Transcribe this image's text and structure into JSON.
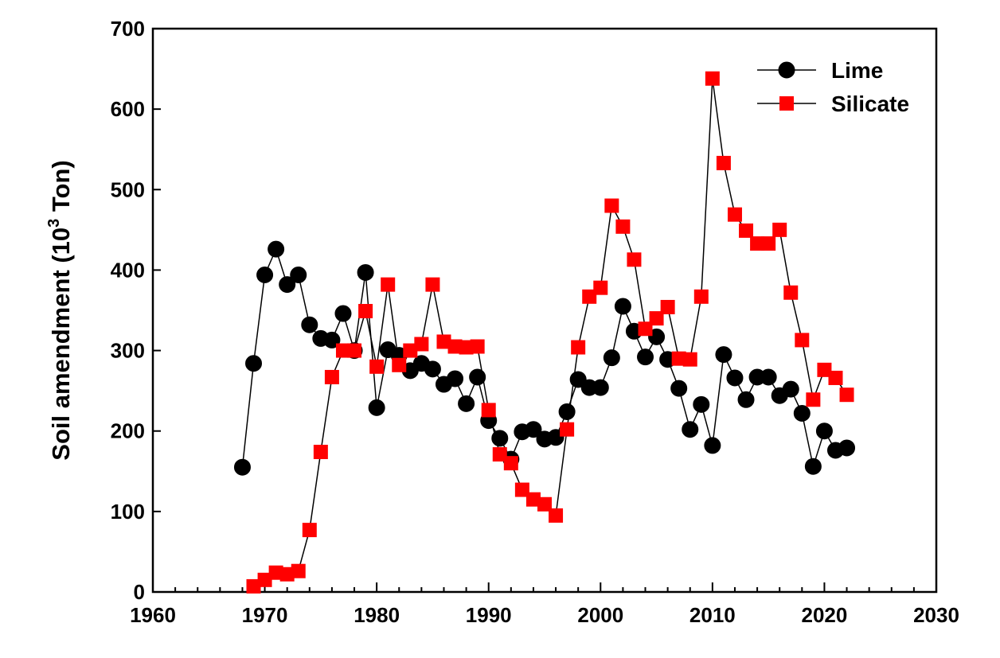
{
  "chart_data": {
    "type": "line",
    "title": "",
    "xlabel": "",
    "ylabel": "Soil amendment (10",
    "ylabel_superscript": "3",
    "ylabel_suffix": " Ton)",
    "xlim": [
      1960,
      2030
    ],
    "ylim": [
      0,
      700
    ],
    "xticks": [
      "1960",
      "1970",
      "1980",
      "1990",
      "2000",
      "2010",
      "2020",
      "2030"
    ],
    "yticks": [
      "0",
      "100",
      "200",
      "300",
      "400",
      "500",
      "600",
      "700"
    ],
    "grid": false,
    "legend_position": "top-right",
    "series": [
      {
        "name": "Lime",
        "marker": "circle",
        "color": "#000000",
        "x": [
          1968,
          1969,
          1970,
          1971,
          1972,
          1973,
          1974,
          1975,
          1976,
          1977,
          1978,
          1979,
          1980,
          1981,
          1982,
          1983,
          1984,
          1985,
          1986,
          1987,
          1988,
          1989,
          1990,
          1991,
          1992,
          1993,
          1994,
          1995,
          1996,
          1997,
          1998,
          1999,
          2000,
          2001,
          2002,
          2003,
          2004,
          2005,
          2006,
          2007,
          2008,
          2009,
          2010,
          2011,
          2012,
          2013,
          2014,
          2015,
          2016,
          2017,
          2018,
          2019,
          2020,
          2021,
          2022
        ],
        "values": [
          155,
          284,
          394,
          426,
          382,
          394,
          332,
          315,
          313,
          346,
          300,
          397,
          229,
          301,
          294,
          275,
          284,
          277,
          258,
          265,
          234,
          267,
          213,
          191,
          165,
          199,
          202,
          190,
          192,
          224,
          264,
          254,
          254,
          291,
          355,
          324,
          292,
          317,
          289,
          253,
          202,
          233,
          182,
          295,
          266,
          239,
          267,
          267,
          244,
          252,
          222,
          156,
          200,
          176,
          179
        ]
      },
      {
        "name": "Silicate",
        "marker": "square",
        "color": "#ff0000",
        "x": [
          1969,
          1970,
          1971,
          1972,
          1973,
          1974,
          1975,
          1976,
          1977,
          1978,
          1979,
          1980,
          1981,
          1982,
          1983,
          1984,
          1985,
          1986,
          1987,
          1988,
          1989,
          1990,
          1991,
          1992,
          1993,
          1994,
          1995,
          1996,
          1997,
          1998,
          1999,
          2000,
          2001,
          2002,
          2003,
          2004,
          2005,
          2006,
          2007,
          2008,
          2009,
          2010,
          2011,
          2012,
          2013,
          2014,
          2015,
          2016,
          2017,
          2018,
          2019,
          2020,
          2021,
          2022
        ],
        "values": [
          7,
          15,
          24,
          22,
          26,
          77,
          174,
          267,
          300,
          300,
          349,
          280,
          382,
          282,
          300,
          308,
          382,
          311,
          305,
          304,
          305,
          226,
          171,
          160,
          127,
          115,
          109,
          95,
          202,
          304,
          367,
          378,
          480,
          454,
          413,
          327,
          340,
          354,
          290,
          289,
          367,
          638,
          533,
          469,
          449,
          433,
          433,
          450,
          372,
          313,
          239,
          276,
          266,
          245
        ]
      }
    ]
  }
}
